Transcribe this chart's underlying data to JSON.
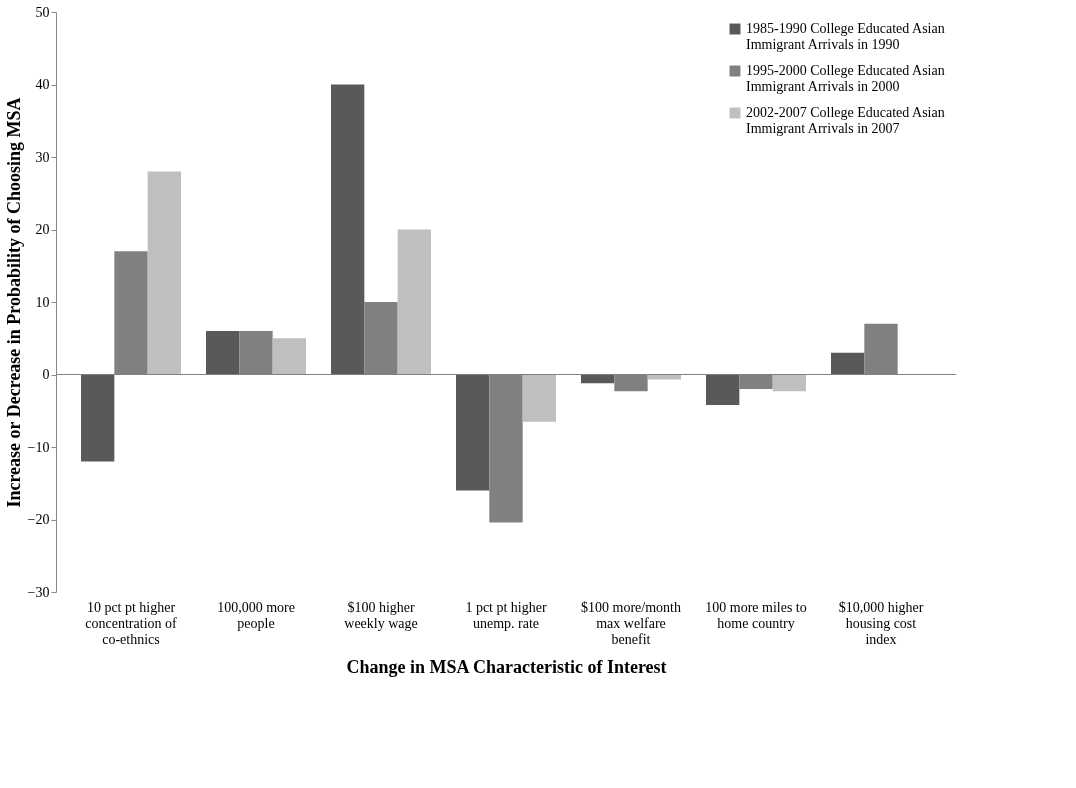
{
  "chart_data": {
    "type": "bar",
    "categories": [
      "10 pct pt higher concentration of co-ethnics",
      "100,000 more people",
      "$100 higher weekly wage",
      "1 pct pt higher unemp. rate",
      "$100 more/month max welfare benefit",
      "100 more miles to home country",
      "$10,000 higher housing cost index"
    ],
    "series": [
      {
        "name": "1985-1990 College Educated Asian Immigrant Arrivals in 1990",
        "color": "#595959",
        "values": [
          -12,
          6,
          40,
          -16,
          -1.2,
          -4.2,
          3
        ]
      },
      {
        "name": "1995-2000 College Educated Asian Immigrant Arrivals in 2000",
        "color": "#808080",
        "values": [
          17,
          6,
          10,
          -20.4,
          -2.3,
          -2,
          7
        ]
      },
      {
        "name": "2002-2007 College Educated Asian Immigrant Arrivals in 2007",
        "color": "#bfbfbf",
        "values": [
          28,
          5,
          20,
          -6.5,
          -0.7,
          -2.3,
          null
        ]
      }
    ],
    "xlabel": "Change in MSA Characteristic of Interest",
    "ylabel": "Increase or Decrease in Probability of Choosing MSA",
    "ylim": [
      -30,
      50
    ],
    "yticks": [
      -30,
      -20,
      -10,
      0,
      10,
      20,
      30,
      40,
      50
    ],
    "ref_lines": [
      {
        "axis": "y",
        "value": 0,
        "color": "#808080"
      }
    ],
    "grid": false,
    "legend": "top right"
  }
}
